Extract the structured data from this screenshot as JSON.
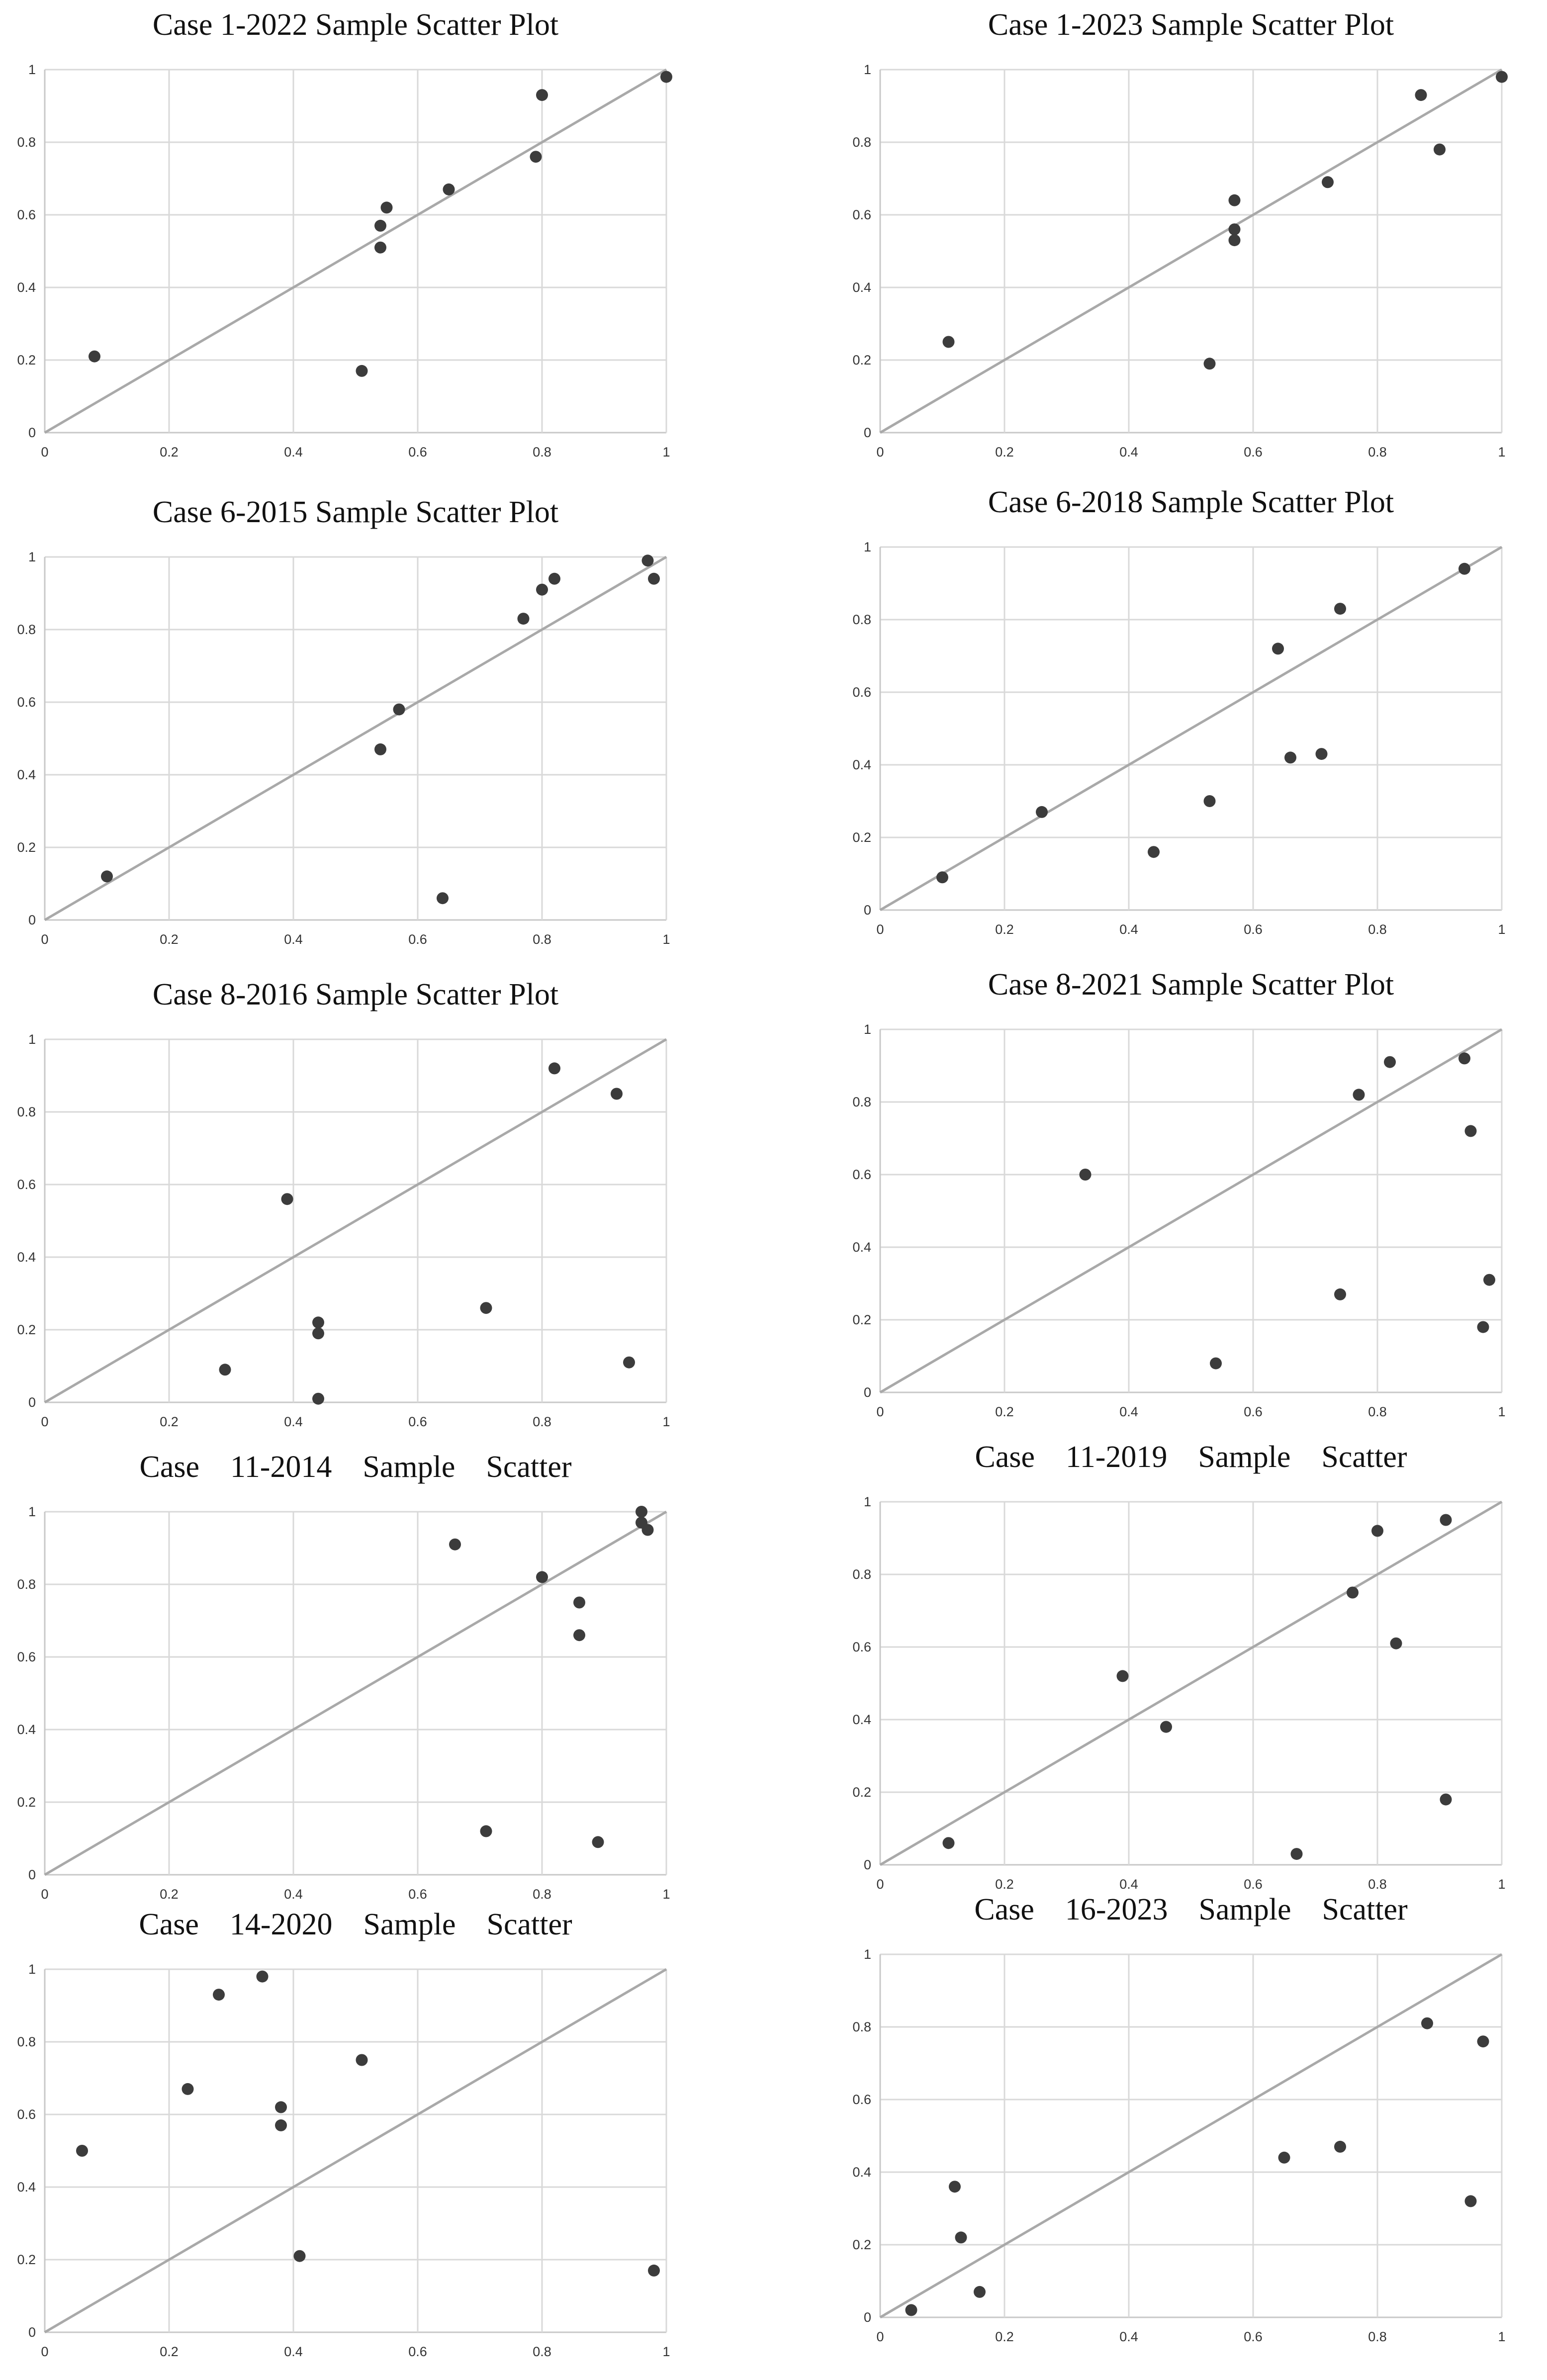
{
  "chart_data": [
    {
      "type": "scatter",
      "title": "Case 1-2022 Sample Scatter Plot",
      "xlim": [
        0,
        1
      ],
      "ylim": [
        0,
        1
      ],
      "xticks": [
        "0",
        "0.2",
        "0.4",
        "0.6",
        "0.8",
        "1"
      ],
      "yticks": [
        "0",
        "0.2",
        "0.4",
        "0.6",
        "0.8",
        "1"
      ],
      "reference_line": "y = x",
      "grid": true,
      "points": [
        [
          0.08,
          0.21
        ],
        [
          0.51,
          0.17
        ],
        [
          0.54,
          0.51
        ],
        [
          0.54,
          0.57
        ],
        [
          0.55,
          0.62
        ],
        [
          0.65,
          0.67
        ],
        [
          0.79,
          0.76
        ],
        [
          0.8,
          0.93
        ],
        [
          1.0,
          0.98
        ]
      ]
    },
    {
      "type": "scatter",
      "title": "Case 1-2023 Sample Scatter Plot",
      "xlim": [
        0,
        1
      ],
      "ylim": [
        0,
        1
      ],
      "xticks": [
        "0",
        "0.2",
        "0.4",
        "0.6",
        "0.8",
        "1"
      ],
      "yticks": [
        "0",
        "0.2",
        "0.4",
        "0.6",
        "0.8",
        "1"
      ],
      "reference_line": "y = x",
      "grid": true,
      "points": [
        [
          0.11,
          0.25
        ],
        [
          0.53,
          0.19
        ],
        [
          0.57,
          0.53
        ],
        [
          0.57,
          0.56
        ],
        [
          0.57,
          0.64
        ],
        [
          0.72,
          0.69
        ],
        [
          0.87,
          0.93
        ],
        [
          0.9,
          0.78
        ],
        [
          1.0,
          0.98
        ]
      ]
    },
    {
      "type": "scatter",
      "title": "Case 6-2015 Sample Scatter Plot",
      "xlim": [
        0,
        1
      ],
      "ylim": [
        0,
        1
      ],
      "xticks": [
        "0",
        "0.2",
        "0.4",
        "0.6",
        "0.8",
        "1"
      ],
      "yticks": [
        "0",
        "0.2",
        "0.4",
        "0.6",
        "0.8",
        "1"
      ],
      "reference_line": "y = x",
      "grid": true,
      "points": [
        [
          0.1,
          0.12
        ],
        [
          0.54,
          0.47
        ],
        [
          0.57,
          0.58
        ],
        [
          0.64,
          0.06
        ],
        [
          0.77,
          0.83
        ],
        [
          0.8,
          0.91
        ],
        [
          0.82,
          0.94
        ],
        [
          0.97,
          0.99
        ],
        [
          0.98,
          0.94
        ]
      ]
    },
    {
      "type": "scatter",
      "title": "Case 6-2018 Sample Scatter Plot",
      "xlim": [
        0,
        1
      ],
      "ylim": [
        0,
        1
      ],
      "xticks": [
        "0",
        "0.2",
        "0.4",
        "0.6",
        "0.8",
        "1"
      ],
      "yticks": [
        "0",
        "0.2",
        "0.4",
        "0.6",
        "0.8",
        "1"
      ],
      "reference_line": "y = x",
      "grid": true,
      "points": [
        [
          0.1,
          0.09
        ],
        [
          0.26,
          0.27
        ],
        [
          0.44,
          0.16
        ],
        [
          0.53,
          0.3
        ],
        [
          0.64,
          0.72
        ],
        [
          0.66,
          0.42
        ],
        [
          0.71,
          0.43
        ],
        [
          0.74,
          0.83
        ],
        [
          0.94,
          0.94
        ]
      ]
    },
    {
      "type": "scatter",
      "title": "Case 8-2016 Sample Scatter Plot",
      "xlim": [
        0,
        1
      ],
      "ylim": [
        0,
        1
      ],
      "xticks": [
        "0",
        "0.2",
        "0.4",
        "0.6",
        "0.8",
        "1"
      ],
      "yticks": [
        "0",
        "0.2",
        "0.4",
        "0.6",
        "0.8",
        "1"
      ],
      "reference_line": "y = x",
      "grid": true,
      "points": [
        [
          0.29,
          0.09
        ],
        [
          0.39,
          0.56
        ],
        [
          0.44,
          0.22
        ],
        [
          0.44,
          0.19
        ],
        [
          0.44,
          0.01
        ],
        [
          0.71,
          0.26
        ],
        [
          0.82,
          0.92
        ],
        [
          0.92,
          0.85
        ],
        [
          0.94,
          0.11
        ]
      ]
    },
    {
      "type": "scatter",
      "title": "Case 8-2021 Sample Scatter Plot",
      "xlim": [
        0,
        1
      ],
      "ylim": [
        0,
        1
      ],
      "xticks": [
        "0",
        "0.2",
        "0.4",
        "0.6",
        "0.8",
        "1"
      ],
      "yticks": [
        "0",
        "0.2",
        "0.4",
        "0.6",
        "0.8",
        "1"
      ],
      "reference_line": "y = x",
      "grid": true,
      "points": [
        [
          0.33,
          0.6
        ],
        [
          0.54,
          0.08
        ],
        [
          0.74,
          0.27
        ],
        [
          0.77,
          0.82
        ],
        [
          0.82,
          0.91
        ],
        [
          0.94,
          0.92
        ],
        [
          0.95,
          0.72
        ],
        [
          0.97,
          0.18
        ],
        [
          0.98,
          0.31
        ]
      ]
    },
    {
      "type": "scatter",
      "title": "Case    11-2014    Sample    Scatter",
      "xlim": [
        0,
        1
      ],
      "ylim": [
        0,
        1
      ],
      "xticks": [
        "0",
        "0.2",
        "0.4",
        "0.6",
        "0.8",
        "1"
      ],
      "yticks": [
        "0",
        "0.2",
        "0.4",
        "0.6",
        "0.8",
        "1"
      ],
      "reference_line": "y = x",
      "grid": true,
      "points": [
        [
          0.66,
          0.91
        ],
        [
          0.71,
          0.12
        ],
        [
          0.8,
          0.82
        ],
        [
          0.86,
          0.75
        ],
        [
          0.86,
          0.66
        ],
        [
          0.89,
          0.09
        ],
        [
          0.96,
          1.0
        ],
        [
          0.96,
          0.97
        ],
        [
          0.97,
          0.95
        ]
      ]
    },
    {
      "type": "scatter",
      "title": "Case    11-2019    Sample    Scatter",
      "xlim": [
        0,
        1
      ],
      "ylim": [
        0,
        1
      ],
      "xticks": [
        "0",
        "0.2",
        "0.4",
        "0.6",
        "0.8",
        "1"
      ],
      "yticks": [
        "0",
        "0.2",
        "0.4",
        "0.6",
        "0.8",
        "1"
      ],
      "reference_line": "y = x",
      "grid": true,
      "points": [
        [
          0.11,
          0.06
        ],
        [
          0.39,
          0.52
        ],
        [
          0.46,
          0.38
        ],
        [
          0.67,
          0.03
        ],
        [
          0.76,
          0.75
        ],
        [
          0.8,
          0.92
        ],
        [
          0.83,
          0.61
        ],
        [
          0.91,
          0.18
        ],
        [
          0.91,
          0.95
        ]
      ]
    },
    {
      "type": "scatter",
      "title": "Case    14-2020    Sample    Scatter",
      "xlim": [
        0,
        1
      ],
      "ylim": [
        0,
        1
      ],
      "xticks": [
        "0",
        "0.2",
        "0.4",
        "0.6",
        "0.8",
        "1"
      ],
      "yticks": [
        "0",
        "0.2",
        "0.4",
        "0.6",
        "0.8",
        "1"
      ],
      "reference_line": "y = x",
      "grid": true,
      "points": [
        [
          0.06,
          0.5
        ],
        [
          0.23,
          0.67
        ],
        [
          0.28,
          0.93
        ],
        [
          0.35,
          0.98
        ],
        [
          0.38,
          0.62
        ],
        [
          0.38,
          0.57
        ],
        [
          0.41,
          0.21
        ],
        [
          0.51,
          0.75
        ],
        [
          0.98,
          0.17
        ]
      ]
    },
    {
      "type": "scatter",
      "title": "Case    16-2023    Sample    Scatter",
      "xlim": [
        0,
        1
      ],
      "ylim": [
        0,
        1
      ],
      "xticks": [
        "0",
        "0.2",
        "0.4",
        "0.6",
        "0.8",
        "1"
      ],
      "yticks": [
        "0",
        "0.2",
        "0.4",
        "0.6",
        "0.8",
        "1"
      ],
      "reference_line": "y = x",
      "grid": true,
      "points": [
        [
          0.05,
          0.02
        ],
        [
          0.12,
          0.36
        ],
        [
          0.13,
          0.22
        ],
        [
          0.16,
          0.07
        ],
        [
          0.65,
          0.44
        ],
        [
          0.74,
          0.47
        ],
        [
          0.88,
          0.81
        ],
        [
          0.95,
          0.32
        ],
        [
          0.97,
          0.76
        ]
      ]
    }
  ]
}
